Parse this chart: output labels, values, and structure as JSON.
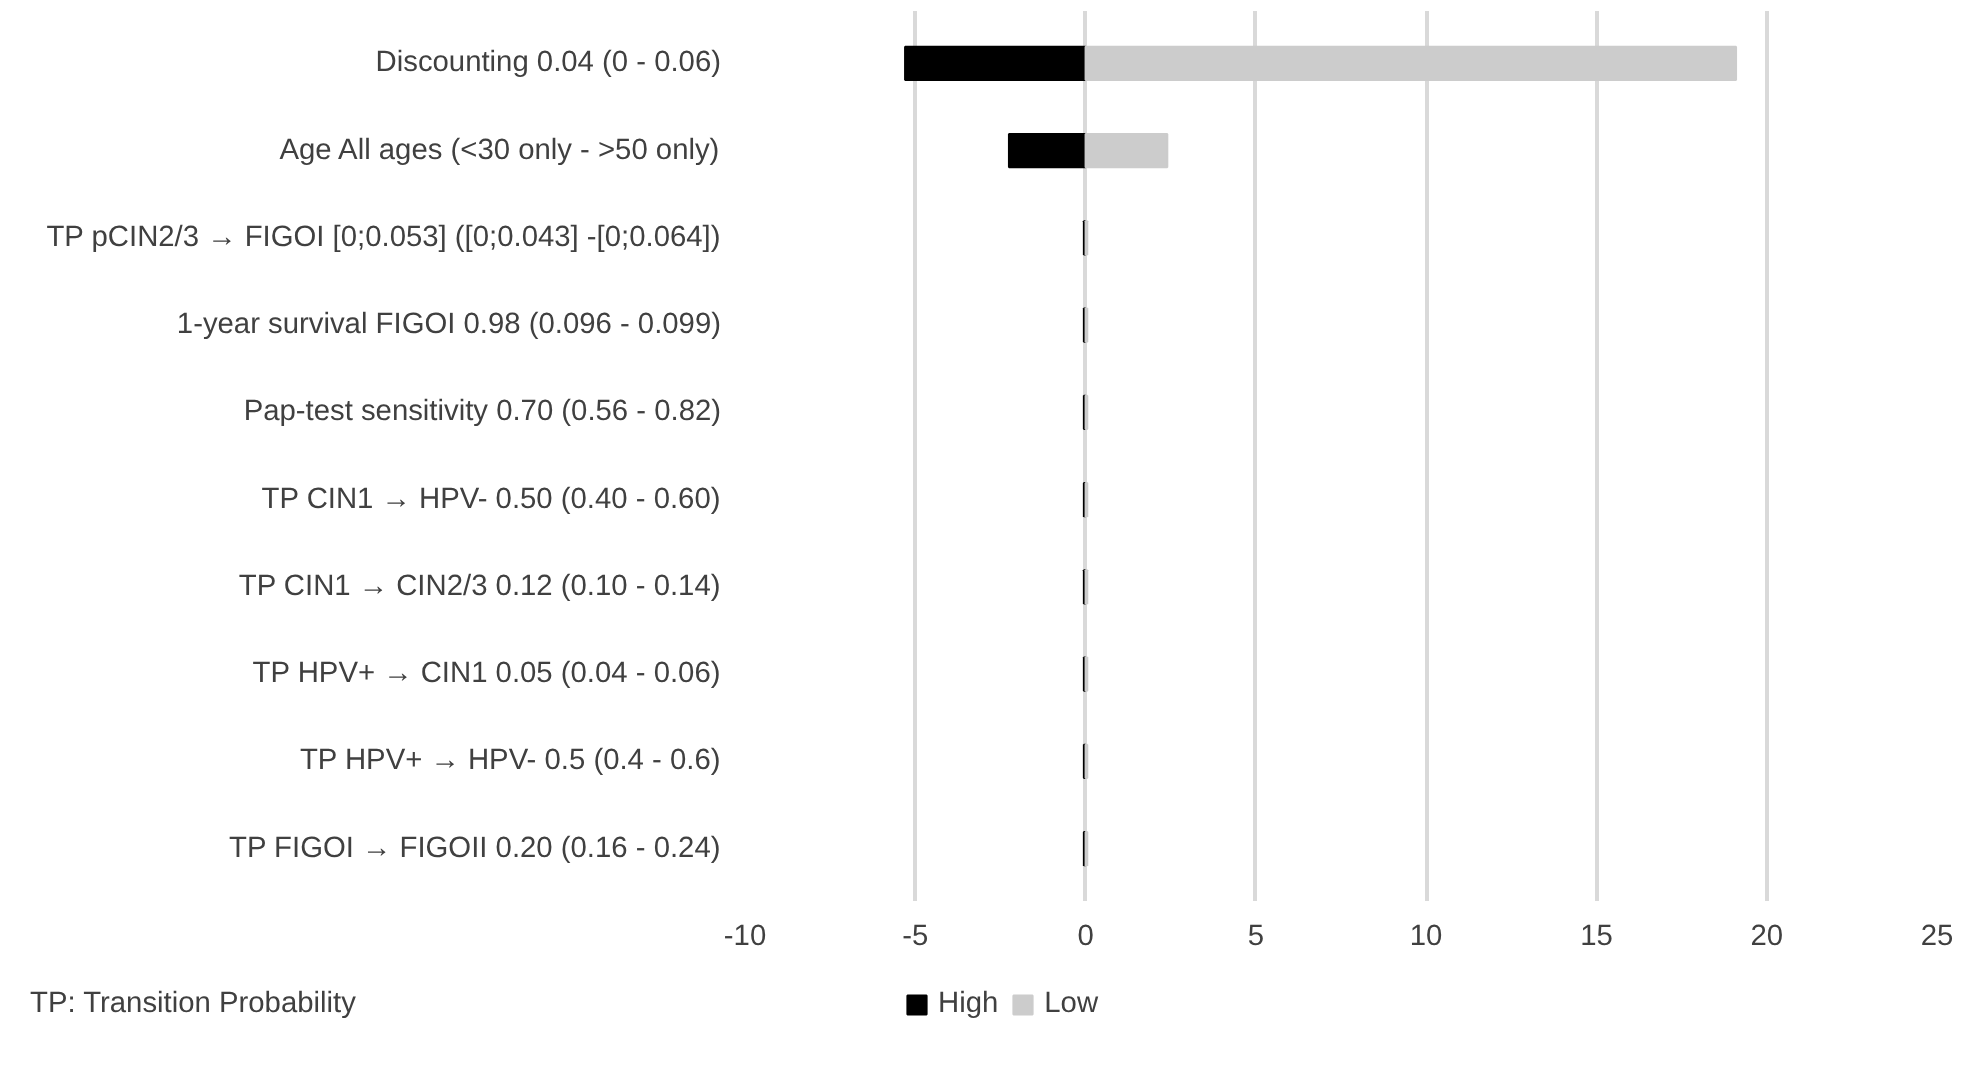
{
  "chart_data": {
    "type": "bar",
    "orientation": "horizontal",
    "categories": [
      "Discounting 0.04 (0 - 0.06)",
      "Age All ages (<30 only - >50 only)",
      "TP pCIN2/3 → FIGOI [0;0.053] ([0;0.043] -[0;0.064])",
      "1-year survival FIGOI 0.98 (0.096 - 0.099)",
      "Pap-test sensitivity 0.70 (0.56 - 0.82)",
      "TP CIN1 → HPV- 0.50 (0.40 - 0.60)",
      "TP CIN1 → CIN2/3 0.12 (0.10 - 0.14)",
      "TP HPV+ → CIN1 0.05 (0.04 - 0.06)",
      "TP HPV+ → HPV- 0.5 (0.4 - 0.6)",
      "TP FIGOI → FIGOII 0.20 (0.16 - 0.24)"
    ],
    "series": [
      {
        "name": "High",
        "color": "#000000",
        "values": [
          -5.3,
          -2.25,
          -0.05,
          -0.05,
          -0.05,
          -0.05,
          -0.05,
          -0.05,
          -0.05,
          -0.05
        ]
      },
      {
        "name": "Low",
        "color": "#cccccc",
        "values": [
          19.1,
          2.4,
          0.05,
          0.05,
          0.05,
          0.05,
          0.05,
          0.05,
          0.05,
          0.05
        ]
      }
    ],
    "xlim": [
      -10,
      25
    ],
    "xticks": [
      -10,
      -5,
      0,
      5,
      10,
      15,
      20,
      25
    ],
    "grid": "x",
    "legend": "bottom",
    "annotations": [
      "TP: Transition Probability"
    ]
  }
}
